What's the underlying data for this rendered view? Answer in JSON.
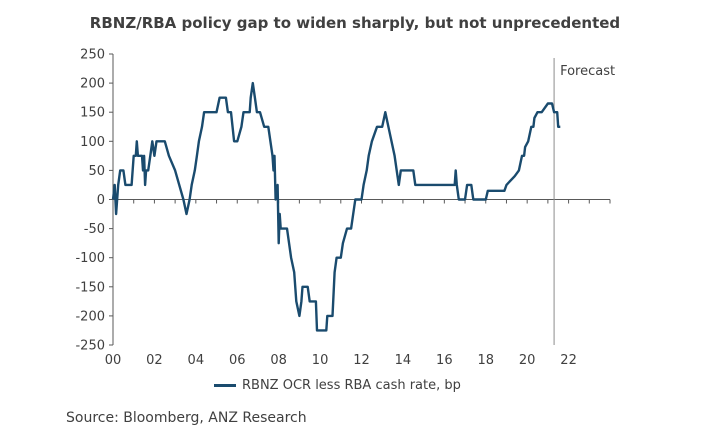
{
  "chart_data": {
    "type": "line",
    "title": "RBNZ/RBA policy gap to widen sharply, but not unprecedented",
    "xlabel": "",
    "ylabel": "",
    "xlim": [
      2000,
      2024
    ],
    "ylim": [
      -250,
      250
    ],
    "yticks": [
      250,
      200,
      150,
      100,
      50,
      0,
      -50,
      -100,
      -150,
      -200,
      -250
    ],
    "xticks": [
      {
        "value": 2000,
        "label": "00"
      },
      {
        "value": 2002,
        "label": "02"
      },
      {
        "value": 2004,
        "label": "04"
      },
      {
        "value": 2006,
        "label": "06"
      },
      {
        "value": 2008,
        "label": "08"
      },
      {
        "value": 2010,
        "label": "10"
      },
      {
        "value": 2012,
        "label": "12"
      },
      {
        "value": 2014,
        "label": "14"
      },
      {
        "value": 2016,
        "label": "16"
      },
      {
        "value": 2018,
        "label": "18"
      },
      {
        "value": 2020,
        "label": "20"
      },
      {
        "value": 2022,
        "label": "22"
      }
    ],
    "grid": false,
    "legend": "bottom",
    "series": [
      {
        "name": "RBNZ OCR less RBA cash rate, bp",
        "color": "#1a4b6e",
        "points": [
          [
            2000.0,
            0
          ],
          [
            2000.08,
            25
          ],
          [
            2000.15,
            -25
          ],
          [
            2000.25,
            25
          ],
          [
            2000.35,
            50
          ],
          [
            2000.5,
            50
          ],
          [
            2000.6,
            25
          ],
          [
            2000.9,
            25
          ],
          [
            2001.0,
            75
          ],
          [
            2001.1,
            75
          ],
          [
            2001.15,
            100
          ],
          [
            2001.2,
            75
          ],
          [
            2001.4,
            75
          ],
          [
            2001.45,
            50
          ],
          [
            2001.5,
            75
          ],
          [
            2001.55,
            25
          ],
          [
            2001.6,
            50
          ],
          [
            2001.7,
            50
          ],
          [
            2001.8,
            75
          ],
          [
            2001.9,
            100
          ],
          [
            2002.0,
            75
          ],
          [
            2002.1,
            100
          ],
          [
            2002.5,
            100
          ],
          [
            2002.7,
            75
          ],
          [
            2003.0,
            50
          ],
          [
            2003.4,
            0
          ],
          [
            2003.55,
            -25
          ],
          [
            2003.7,
            0
          ],
          [
            2003.8,
            25
          ],
          [
            2003.95,
            50
          ],
          [
            2004.05,
            75
          ],
          [
            2004.15,
            100
          ],
          [
            2004.3,
            125
          ],
          [
            2004.4,
            150
          ],
          [
            2005.0,
            150
          ],
          [
            2005.15,
            175
          ],
          [
            2005.45,
            175
          ],
          [
            2005.55,
            150
          ],
          [
            2005.7,
            150
          ],
          [
            2005.85,
            100
          ],
          [
            2006.0,
            100
          ],
          [
            2006.2,
            125
          ],
          [
            2006.3,
            150
          ],
          [
            2006.6,
            150
          ],
          [
            2006.65,
            175
          ],
          [
            2006.75,
            200
          ],
          [
            2006.85,
            175
          ],
          [
            2006.95,
            150
          ],
          [
            2007.1,
            150
          ],
          [
            2007.3,
            125
          ],
          [
            2007.5,
            125
          ],
          [
            2007.6,
            100
          ],
          [
            2007.7,
            75
          ],
          [
            2007.75,
            50
          ],
          [
            2007.8,
            75
          ],
          [
            2007.85,
            0
          ],
          [
            2007.95,
            25
          ],
          [
            2008.0,
            -75
          ],
          [
            2008.05,
            -25
          ],
          [
            2008.1,
            -50
          ],
          [
            2008.4,
            -50
          ],
          [
            2008.6,
            -100
          ],
          [
            2008.75,
            -125
          ],
          [
            2008.85,
            -175
          ],
          [
            2009.0,
            -200
          ],
          [
            2009.1,
            -175
          ],
          [
            2009.15,
            -150
          ],
          [
            2009.4,
            -150
          ],
          [
            2009.5,
            -175
          ],
          [
            2009.8,
            -175
          ],
          [
            2009.85,
            -225
          ],
          [
            2010.3,
            -225
          ],
          [
            2010.35,
            -200
          ],
          [
            2010.6,
            -200
          ],
          [
            2010.7,
            -125
          ],
          [
            2010.8,
            -100
          ],
          [
            2011.0,
            -100
          ],
          [
            2011.1,
            -75
          ],
          [
            2011.3,
            -50
          ],
          [
            2011.5,
            -50
          ],
          [
            2011.6,
            -25
          ],
          [
            2011.7,
            0
          ],
          [
            2011.8,
            0
          ],
          [
            2012.0,
            0
          ],
          [
            2012.1,
            25
          ],
          [
            2012.25,
            50
          ],
          [
            2012.35,
            75
          ],
          [
            2012.5,
            100
          ],
          [
            2012.75,
            125
          ],
          [
            2013.0,
            125
          ],
          [
            2013.15,
            150
          ],
          [
            2013.3,
            125
          ],
          [
            2013.45,
            100
          ],
          [
            2013.6,
            75
          ],
          [
            2013.7,
            50
          ],
          [
            2013.8,
            25
          ],
          [
            2013.9,
            50
          ],
          [
            2014.5,
            50
          ],
          [
            2014.6,
            25
          ],
          [
            2016.5,
            25
          ],
          [
            2016.55,
            50
          ],
          [
            2016.6,
            25
          ],
          [
            2016.7,
            0
          ],
          [
            2017.0,
            0
          ],
          [
            2017.1,
            25
          ],
          [
            2017.3,
            25
          ],
          [
            2017.4,
            0
          ],
          [
            2018.0,
            0
          ],
          [
            2018.1,
            15
          ],
          [
            2018.9,
            15
          ],
          [
            2019.0,
            25
          ],
          [
            2019.4,
            40
          ],
          [
            2019.6,
            50
          ],
          [
            2019.75,
            75
          ],
          [
            2019.85,
            75
          ],
          [
            2019.9,
            90
          ],
          [
            2020.05,
            100
          ],
          [
            2020.2,
            125
          ],
          [
            2020.3,
            125
          ],
          [
            2020.35,
            140
          ],
          [
            2020.5,
            150
          ],
          [
            2020.7,
            150
          ],
          [
            2021.0,
            165
          ],
          [
            2021.2,
            165
          ],
          [
            2021.3,
            150
          ],
          [
            2021.45,
            150
          ],
          [
            2021.5,
            125
          ],
          [
            2021.6,
            125
          ]
        ]
      }
    ],
    "annotations": [
      {
        "text": "Forecast",
        "type": "vertical-line",
        "x": 2021.3
      }
    ]
  },
  "legend": {
    "label": "RBNZ OCR less RBA cash rate, bp"
  },
  "source": "Source: Bloomberg, ANZ Research"
}
